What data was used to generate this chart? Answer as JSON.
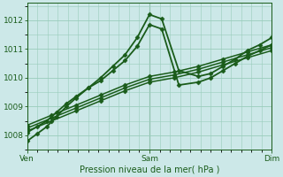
{
  "title": "Pression niveau de la mer( hPa )",
  "bg_color": "#cce8e8",
  "grid_color": "#99ccbb",
  "line_color": "#1a5c1a",
  "xtick_labels": [
    "Ven",
    "Sam",
    "Dim"
  ],
  "xtick_positions": [
    0.0,
    0.5,
    1.0
  ],
  "ylim": [
    1007.5,
    1012.6
  ],
  "yticks": [
    1008,
    1009,
    1010,
    1011,
    1012
  ],
  "lines": [
    {
      "x": [
        0.0,
        0.04,
        0.08,
        0.12,
        0.16,
        0.2,
        0.25,
        0.3,
        0.35,
        0.4,
        0.45,
        0.5,
        0.55,
        0.62,
        0.7,
        0.75,
        0.8,
        0.85,
        0.9,
        0.95,
        1.0
      ],
      "y": [
        1007.8,
        1008.05,
        1008.3,
        1008.65,
        1009.0,
        1009.3,
        1009.65,
        1010.0,
        1010.4,
        1010.8,
        1011.4,
        1012.2,
        1012.05,
        1010.25,
        1010.05,
        1010.15,
        1010.4,
        1010.65,
        1010.95,
        1011.15,
        1011.4
      ],
      "marker": "D",
      "ms": 2.5,
      "lw": 1.3
    },
    {
      "x": [
        0.0,
        0.04,
        0.08,
        0.12,
        0.16,
        0.2,
        0.25,
        0.3,
        0.35,
        0.4,
        0.45,
        0.5,
        0.55,
        0.62,
        0.7,
        0.75,
        0.8,
        0.85,
        0.9,
        0.95,
        1.0
      ],
      "y": [
        1008.1,
        1008.3,
        1008.5,
        1008.8,
        1009.1,
        1009.35,
        1009.65,
        1009.9,
        1010.25,
        1010.6,
        1011.1,
        1011.85,
        1011.7,
        1009.75,
        1009.85,
        1010.0,
        1010.25,
        1010.5,
        1010.75,
        1010.95,
        1011.15
      ],
      "marker": "D",
      "ms": 2.5,
      "lw": 1.3
    },
    {
      "x": [
        0.0,
        0.1,
        0.2,
        0.3,
        0.4,
        0.5,
        0.6,
        0.7,
        0.8,
        0.9,
        1.0
      ],
      "y": [
        1008.15,
        1008.5,
        1008.85,
        1009.2,
        1009.55,
        1009.85,
        1010.0,
        1010.2,
        1010.45,
        1010.7,
        1010.95
      ],
      "marker": "D",
      "ms": 2.5,
      "lw": 1.1
    },
    {
      "x": [
        0.0,
        0.1,
        0.2,
        0.3,
        0.4,
        0.5,
        0.6,
        0.7,
        0.8,
        0.9,
        1.0
      ],
      "y": [
        1008.25,
        1008.6,
        1008.95,
        1009.3,
        1009.65,
        1009.95,
        1010.1,
        1010.3,
        1010.55,
        1010.8,
        1011.05
      ],
      "marker": "D",
      "ms": 2.5,
      "lw": 1.1
    },
    {
      "x": [
        0.0,
        0.1,
        0.2,
        0.3,
        0.4,
        0.5,
        0.6,
        0.7,
        0.8,
        0.9,
        1.0
      ],
      "y": [
        1008.35,
        1008.7,
        1009.05,
        1009.4,
        1009.75,
        1010.05,
        1010.2,
        1010.4,
        1010.65,
        1010.9,
        1011.15
      ],
      "marker": "D",
      "ms": 2.5,
      "lw": 1.1
    }
  ],
  "figsize": [
    3.2,
    2.0
  ],
  "dpi": 100
}
